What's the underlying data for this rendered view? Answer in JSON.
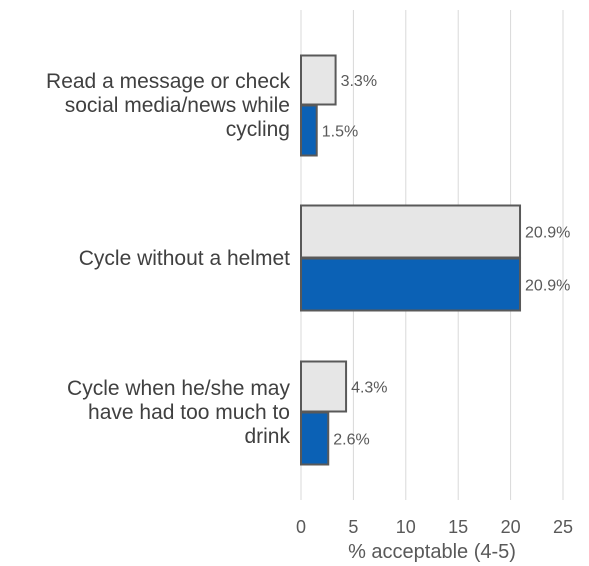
{
  "chart_data": {
    "type": "bar",
    "orientation": "horizontal",
    "categories": [
      [
        "Read a message or check",
        "social media/news while",
        "cycling"
      ],
      [
        "Cycle without a helmet"
      ],
      [
        "Cycle when he/she may",
        "have had too much to",
        "drink"
      ]
    ],
    "series": [
      {
        "values": [
          3.3,
          20.9,
          4.3
        ],
        "labels": [
          "3.3%",
          "20.9%",
          "4.3%"
        ],
        "color": "#e6e6e6"
      },
      {
        "values": [
          1.5,
          20.9,
          2.6
        ],
        "labels": [
          "1.5%",
          "20.9%",
          "2.6%"
        ],
        "color": "#0b61b5"
      }
    ],
    "xlabel": "% acceptable (4-5)",
    "xlim": [
      0,
      25
    ],
    "xticks": [
      0,
      5,
      10,
      15,
      20,
      25
    ],
    "grid": true
  }
}
